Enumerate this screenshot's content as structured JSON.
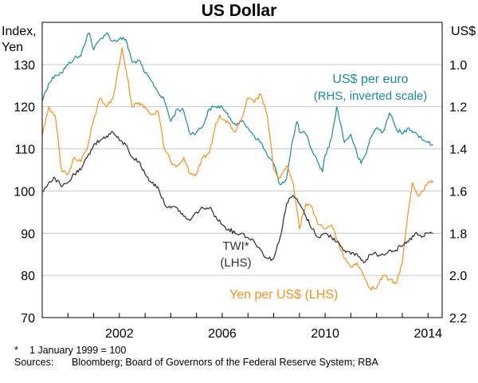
{
  "chart_data": {
    "type": "line",
    "title": "US Dollar",
    "left_axis": {
      "label_line1": "Index,",
      "label_line2": "Yen",
      "ylim": [
        70,
        140
      ],
      "ticks": [
        70,
        80,
        90,
        100,
        110,
        120,
        130
      ]
    },
    "right_axis": {
      "label": "US$",
      "ylim": [
        2.2,
        0.8
      ],
      "inverted": true,
      "ticks": [
        "1.0",
        "1.2",
        "1.4",
        "1.6",
        "1.8",
        "2.0",
        "2.2"
      ]
    },
    "x_axis": {
      "xlim": [
        1999.0,
        2014.55
      ],
      "tick_years": [
        2002,
        2006,
        2010,
        2014
      ]
    },
    "series": [
      {
        "name": "US$ per euro",
        "annotation_line1": "US$ per euro",
        "annotation_line2": "(RHS, inverted scale)",
        "axis": "right",
        "color": "#1a8a9e",
        "x": [
          1999.0,
          1999.25,
          1999.5,
          1999.75,
          2000.0,
          2000.25,
          2000.5,
          2000.75,
          2000.83,
          2001.0,
          2001.25,
          2001.5,
          2001.75,
          2002.0,
          2002.25,
          2002.5,
          2002.75,
          2003.0,
          2003.25,
          2003.5,
          2003.75,
          2004.0,
          2004.25,
          2004.5,
          2004.75,
          2005.0,
          2005.25,
          2005.5,
          2005.75,
          2006.0,
          2006.25,
          2006.5,
          2006.75,
          2007.0,
          2007.25,
          2007.5,
          2007.75,
          2008.0,
          2008.25,
          2008.5,
          2008.75,
          2008.9,
          2009.0,
          2009.25,
          2009.5,
          2009.75,
          2009.9,
          2010.0,
          2010.25,
          2010.45,
          2010.6,
          2010.75,
          2011.0,
          2011.25,
          2011.4,
          2011.6,
          2011.75,
          2012.0,
          2012.25,
          2012.5,
          2012.75,
          2013.0,
          2013.25,
          2013.5,
          2013.75,
          2014.0,
          2014.2
        ],
        "values": [
          1.17,
          1.09,
          1.05,
          1.04,
          1.0,
          0.97,
          0.96,
          0.86,
          0.85,
          0.93,
          0.88,
          0.85,
          0.89,
          0.88,
          0.88,
          0.99,
          0.98,
          1.04,
          1.08,
          1.13,
          1.17,
          1.27,
          1.21,
          1.22,
          1.33,
          1.32,
          1.29,
          1.21,
          1.2,
          1.2,
          1.25,
          1.28,
          1.27,
          1.3,
          1.34,
          1.37,
          1.43,
          1.47,
          1.57,
          1.54,
          1.35,
          1.27,
          1.32,
          1.33,
          1.41,
          1.47,
          1.51,
          1.43,
          1.35,
          1.2,
          1.28,
          1.37,
          1.33,
          1.43,
          1.47,
          1.42,
          1.35,
          1.3,
          1.32,
          1.23,
          1.3,
          1.33,
          1.3,
          1.32,
          1.35,
          1.37,
          1.38
        ]
      },
      {
        "name": "Yen per US$",
        "annotation": "Yen per US$ (LHS)",
        "axis": "left",
        "color": "#f5901e",
        "x": [
          1999.0,
          1999.25,
          1999.5,
          1999.75,
          2000.0,
          2000.25,
          2000.5,
          2000.75,
          2001.0,
          2001.25,
          2001.5,
          2001.75,
          2002.0,
          2002.1,
          2002.25,
          2002.5,
          2002.75,
          2003.0,
          2003.25,
          2003.5,
          2003.75,
          2004.0,
          2004.25,
          2004.5,
          2004.75,
          2005.0,
          2005.25,
          2005.5,
          2005.75,
          2005.9,
          2006.0,
          2006.25,
          2006.5,
          2006.75,
          2007.0,
          2007.25,
          2007.5,
          2007.75,
          2008.0,
          2008.25,
          2008.5,
          2008.75,
          2009.0,
          2009.25,
          2009.5,
          2009.75,
          2010.0,
          2010.25,
          2010.5,
          2010.75,
          2011.0,
          2011.25,
          2011.5,
          2011.75,
          2012.0,
          2012.25,
          2012.5,
          2012.75,
          2013.0,
          2013.25,
          2013.4,
          2013.6,
          2013.8,
          2014.0,
          2014.2
        ],
        "values": [
          113,
          120,
          118,
          105,
          104,
          108,
          107,
          110,
          117,
          122,
          120,
          122,
          130,
          134,
          129,
          120,
          121,
          120,
          118,
          119,
          110,
          107,
          106,
          108,
          104,
          104,
          108,
          109,
          116,
          118,
          117,
          116,
          114,
          117,
          122,
          121,
          123,
          118,
          105,
          103,
          106,
          102,
          91,
          97,
          96,
          92,
          91,
          92,
          88,
          84,
          82,
          83,
          80,
          77,
          77,
          80,
          79,
          78,
          83,
          96,
          102,
          99,
          100,
          102,
          102
        ]
      },
      {
        "name": "TWI*",
        "annotation_line1": "TWI*",
        "annotation_line2": "(LHS)",
        "axis": "left",
        "color": "#2a2a2a",
        "x": [
          1999.0,
          1999.25,
          1999.5,
          1999.75,
          2000.0,
          2000.25,
          2000.5,
          2000.75,
          2001.0,
          2001.25,
          2001.5,
          2001.75,
          2002.0,
          2002.25,
          2002.5,
          2002.75,
          2003.0,
          2003.25,
          2003.5,
          2003.75,
          2004.0,
          2004.25,
          2004.5,
          2004.75,
          2005.0,
          2005.25,
          2005.5,
          2005.75,
          2006.0,
          2006.25,
          2006.5,
          2006.75,
          2007.0,
          2007.25,
          2007.5,
          2007.75,
          2008.0,
          2008.25,
          2008.5,
          2008.75,
          2009.0,
          2009.25,
          2009.5,
          2009.75,
          2010.0,
          2010.25,
          2010.5,
          2010.75,
          2011.0,
          2011.25,
          2011.5,
          2011.75,
          2012.0,
          2012.25,
          2012.5,
          2012.75,
          2013.0,
          2013.25,
          2013.5,
          2013.75,
          2014.0,
          2014.2
        ],
        "values": [
          100,
          102,
          103,
          101,
          102,
          104,
          105,
          108,
          111,
          112,
          113,
          114,
          112,
          111,
          108,
          107,
          104,
          102,
          101,
          97,
          96,
          96,
          94,
          93,
          95,
          96,
          96,
          94,
          92,
          91,
          90,
          90,
          89,
          88,
          86,
          84,
          84,
          89,
          97,
          99,
          97,
          94,
          91,
          89,
          90,
          89,
          88,
          86,
          85,
          85,
          83,
          85,
          85,
          85,
          86,
          86,
          87,
          88,
          90,
          89,
          90,
          90
        ]
      }
    ],
    "footnote_symbol": "*",
    "footnote_text": "1 January 1999 = 100",
    "sources_label": "Sources:",
    "sources_text": "Bloomberg; Board of Governors of the Federal Reserve System; RBA"
  }
}
